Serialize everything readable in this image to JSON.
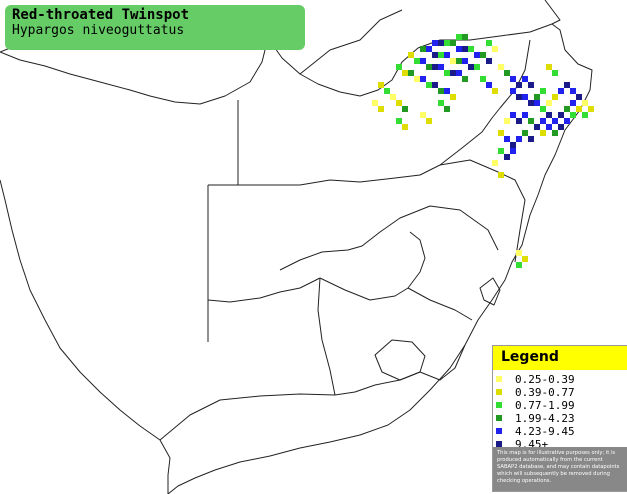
{
  "title": {
    "common_name": "Red-throated Twinspot",
    "scientific_name": "Hypargos niveoguttatus"
  },
  "legend": {
    "heading": "Legend",
    "items": [
      {
        "label": "0.25-0.39",
        "color": "#ffff66"
      },
      {
        "label": "0.39-0.77",
        "color": "#dddd00"
      },
      {
        "label": "0.77-1.99",
        "color": "#33dd33"
      },
      {
        "label": "1.99-4.23",
        "color": "#229922"
      },
      {
        "label": "4.23-9.45",
        "color": "#2222ee"
      },
      {
        "label": "9.45+",
        "color": "#1a1a88"
      }
    ],
    "disclaimer": "This map is for illustrative purposes only; it is produced automatically from the current SABAP2 database, and may contain datapoints which will subsequently be removed during checking operations."
  },
  "colors": {
    "title_box": "#66cc66",
    "legend_header": "#ffff00",
    "legend_note": "#888888",
    "border_line": "#000000"
  }
}
